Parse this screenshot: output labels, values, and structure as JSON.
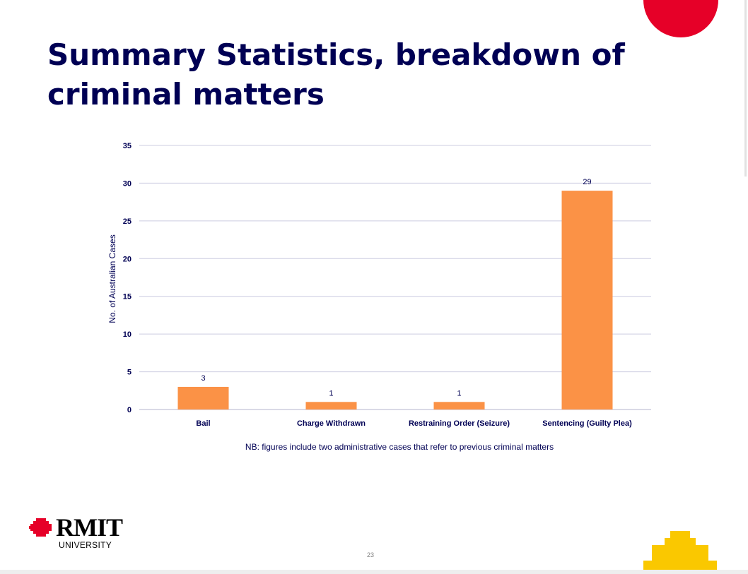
{
  "slide": {
    "title": "Summary Statistics, breakdown of criminal matters",
    "footnote": "NB: figures include two administrative cases that refer to previous criminal matters",
    "page_number": "23"
  },
  "logo": {
    "name": "RMIT",
    "subtitle": "UNIVERSITY"
  },
  "colors": {
    "title": "#000054",
    "bar": "#fb9246",
    "accent_red": "#e60028",
    "accent_yellow": "#fac800",
    "gridline": "#cccce0"
  },
  "chart_data": {
    "type": "bar",
    "title": "",
    "categories": [
      "Bail",
      "Charge Withdrawn",
      "Restraining Order (Seizure)",
      "Sentencing (Guilty Plea)"
    ],
    "values": [
      3,
      1,
      1,
      29
    ],
    "data_labels": [
      "3",
      "1",
      "1",
      "29"
    ],
    "xlabel": "",
    "ylabel": "No. of Australian Cases",
    "ylim": [
      0,
      35
    ],
    "yticks": [
      0,
      5,
      10,
      15,
      20,
      25,
      30,
      35
    ],
    "grid": true,
    "legend": "none"
  }
}
